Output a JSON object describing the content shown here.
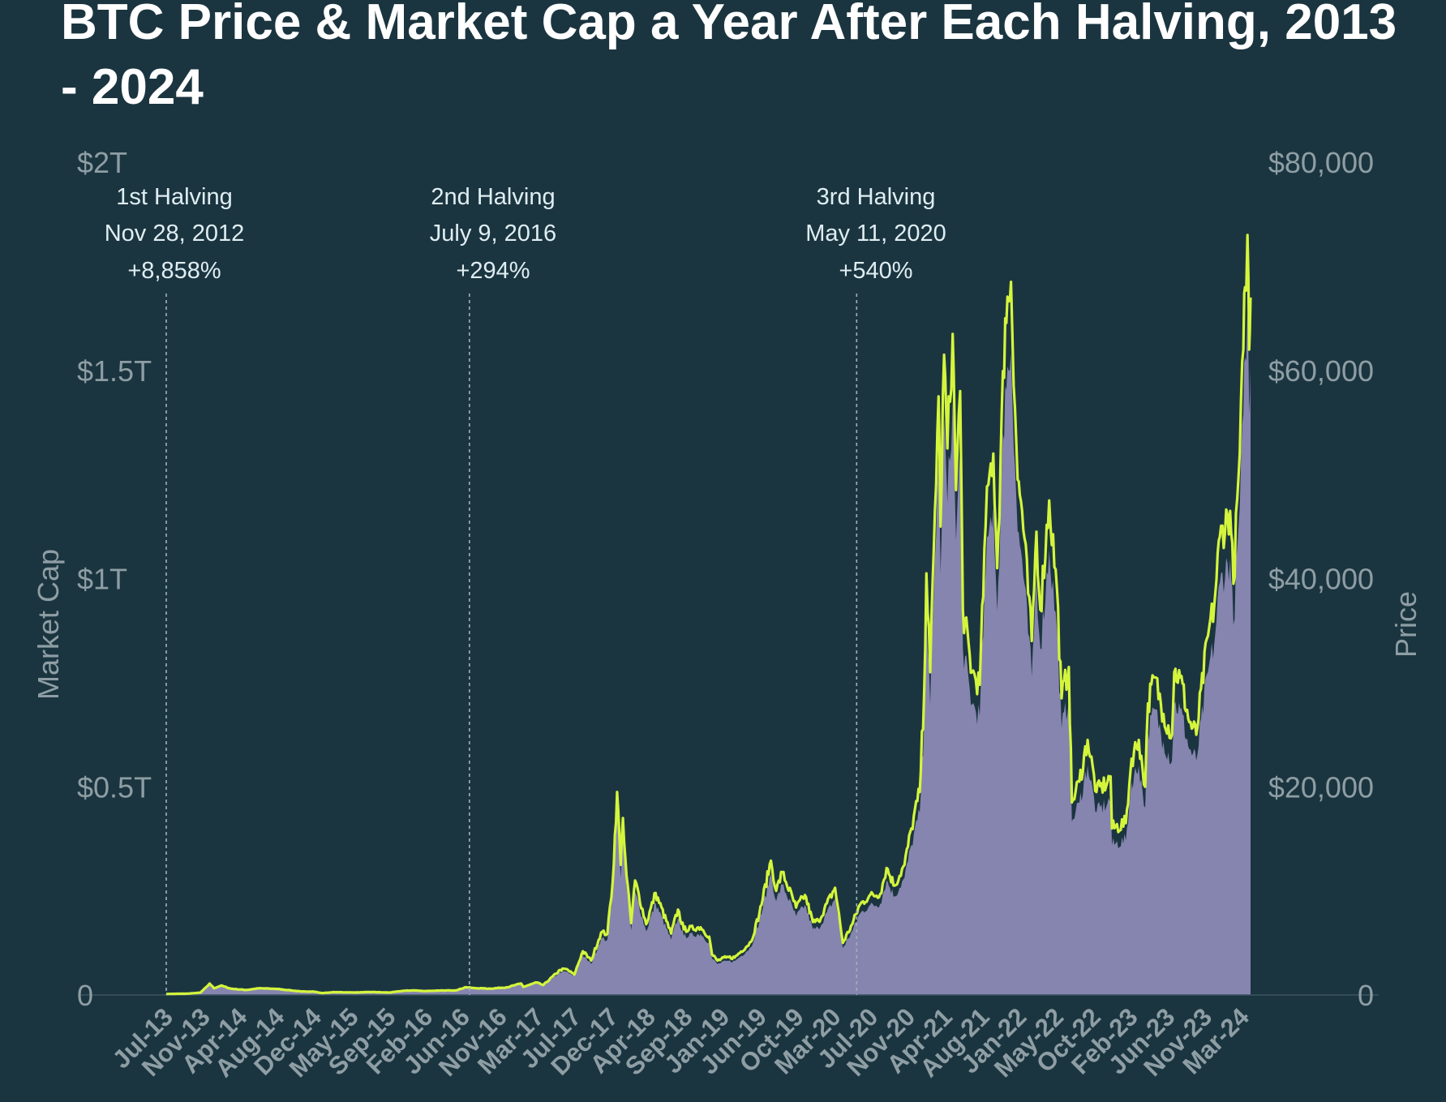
{
  "title": "BTC Price & Market Cap a Year After Each Halving, 2013 - 2024",
  "chart_data": {
    "type": "area",
    "title": "BTC Price & Market Cap a Year After Each Halving, 2013 - 2024",
    "ylabel_left": "Market Cap",
    "ylabel_right": "Price",
    "left_axis": {
      "ticks": [
        0,
        0.5,
        1,
        1.5,
        2
      ],
      "tick_labels": [
        "0",
        "$0.5T",
        "$1T",
        "$1.5T",
        "$2T"
      ],
      "unit": "trillion USD",
      "ylim": [
        0,
        2
      ]
    },
    "right_axis": {
      "ticks": [
        0,
        20000,
        40000,
        60000,
        80000
      ],
      "tick_labels": [
        "0",
        "$20,000",
        "$40,000",
        "$60,000",
        "$80,000"
      ],
      "ylim": [
        0,
        80000
      ]
    },
    "x_tick_labels": [
      "Jul-13",
      "Nov-13",
      "Apr-14",
      "Aug-14",
      "Dec-14",
      "May-15",
      "Sep-15",
      "Feb-16",
      "Jun-16",
      "Nov-16",
      "Mar-17",
      "Jul-17",
      "Dec-17",
      "Apr-18",
      "Sep-18",
      "Jan-19",
      "Jun-19",
      "Oct-19",
      "Mar-20",
      "Jul-20",
      "Nov-20",
      "Apr-21",
      "Aug-21",
      "Jan-22",
      "May-22",
      "Oct-22",
      "Feb-23",
      "Jun-23",
      "Nov-23",
      "Mar-24"
    ],
    "x_range": [
      "2013-07",
      "2024-03"
    ],
    "annotations": [
      {
        "label": "1st Halving",
        "date": "Nov 28, 2012",
        "change": "+8,858%",
        "x": "2013-07"
      },
      {
        "label": "2nd Halving",
        "date": "July 9, 2016",
        "change": "+294%",
        "x": "2016-07"
      },
      {
        "label": "3rd Halving",
        "date": "May 11, 2020",
        "change": "+540%",
        "x": "2020-05"
      }
    ],
    "series": [
      {
        "name": "Price",
        "axis": "right",
        "style": "line",
        "color": "#d4f53c",
        "points": [
          [
            "2013-07-01",
            95
          ],
          [
            "2013-09-15",
            125
          ],
          [
            "2013-11-01",
            220
          ],
          [
            "2013-11-25",
            800
          ],
          [
            "2013-12-05",
            1100
          ],
          [
            "2013-12-20",
            650
          ],
          [
            "2014-01-15",
            900
          ],
          [
            "2014-02-20",
            600
          ],
          [
            "2014-04-15",
            480
          ],
          [
            "2014-06-01",
            640
          ],
          [
            "2014-08-01",
            590
          ],
          [
            "2014-09-15",
            470
          ],
          [
            "2014-11-01",
            330
          ],
          [
            "2014-12-15",
            330
          ],
          [
            "2015-01-14",
            180
          ],
          [
            "2015-03-01",
            270
          ],
          [
            "2015-05-15",
            240
          ],
          [
            "2015-07-15",
            285
          ],
          [
            "2015-09-15",
            230
          ],
          [
            "2015-11-05",
            400
          ],
          [
            "2015-12-15",
            440
          ],
          [
            "2016-01-15",
            380
          ],
          [
            "2016-03-15",
            415
          ],
          [
            "2016-05-15",
            450
          ],
          [
            "2016-06-18",
            750
          ],
          [
            "2016-07-15",
            660
          ],
          [
            "2016-09-15",
            610
          ],
          [
            "2016-11-15",
            740
          ],
          [
            "2017-01-04",
            1100
          ],
          [
            "2017-01-12",
            780
          ],
          [
            "2017-03-01",
            1200
          ],
          [
            "2017-03-25",
            950
          ],
          [
            "2017-05-25",
            2400
          ],
          [
            "2017-06-15",
            2500
          ],
          [
            "2017-07-15",
            1950
          ],
          [
            "2017-08-15",
            4200
          ],
          [
            "2017-09-14",
            3300
          ],
          [
            "2017-10-20",
            6000
          ],
          [
            "2017-11-12",
            5900
          ],
          [
            "2017-12-01",
            10900
          ],
          [
            "2017-12-17",
            19500
          ],
          [
            "2017-12-30",
            12500
          ],
          [
            "2018-01-07",
            17000
          ],
          [
            "2018-01-20",
            11500
          ],
          [
            "2018-02-06",
            6900
          ],
          [
            "2018-02-20",
            11000
          ],
          [
            "2018-04-01",
            6800
          ],
          [
            "2018-05-05",
            9800
          ],
          [
            "2018-06-30",
            5900
          ],
          [
            "2018-07-25",
            8200
          ],
          [
            "2018-08-15",
            6300
          ],
          [
            "2018-10-15",
            6500
          ],
          [
            "2018-11-15",
            5600
          ],
          [
            "2018-11-25",
            3900
          ],
          [
            "2018-12-15",
            3300
          ],
          [
            "2019-01-15",
            3600
          ],
          [
            "2019-02-15",
            3600
          ],
          [
            "2019-04-15",
            5100
          ],
          [
            "2019-05-15",
            7800
          ],
          [
            "2019-06-26",
            12900
          ],
          [
            "2019-07-15",
            10000
          ],
          [
            "2019-08-06",
            11800
          ],
          [
            "2019-09-25",
            8400
          ],
          [
            "2019-10-27",
            9600
          ],
          [
            "2019-11-25",
            7000
          ],
          [
            "2019-12-15",
            7100
          ],
          [
            "2020-02-13",
            10300
          ],
          [
            "2020-03-12",
            5000
          ],
          [
            "2020-04-15",
            6800
          ],
          [
            "2020-05-11",
            8600
          ],
          [
            "2020-06-15",
            9500
          ],
          [
            "2020-07-25",
            9700
          ],
          [
            "2020-08-17",
            12200
          ],
          [
            "2020-09-15",
            10500
          ],
          [
            "2020-10-21",
            12500
          ],
          [
            "2020-11-15",
            16000
          ],
          [
            "2020-12-15",
            19500
          ],
          [
            "2020-12-31",
            29000
          ],
          [
            "2021-01-08",
            40500
          ],
          [
            "2021-01-22",
            31000
          ],
          [
            "2021-02-08",
            46500
          ],
          [
            "2021-02-21",
            57500
          ],
          [
            "2021-02-28",
            45000
          ],
          [
            "2021-03-13",
            61500
          ],
          [
            "2021-03-25",
            52500
          ],
          [
            "2021-04-13",
            63500
          ],
          [
            "2021-04-25",
            48500
          ],
          [
            "2021-05-10",
            58000
          ],
          [
            "2021-05-20",
            37000
          ],
          [
            "2021-06-22",
            31000
          ],
          [
            "2021-07-20",
            29800
          ],
          [
            "2021-08-10",
            45000
          ],
          [
            "2021-08-20",
            49000
          ],
          [
            "2021-09-07",
            52000
          ],
          [
            "2021-09-21",
            41000
          ],
          [
            "2021-10-20",
            65000
          ],
          [
            "2021-11-10",
            68500
          ],
          [
            "2021-12-04",
            49500
          ],
          [
            "2021-12-20",
            46500
          ],
          [
            "2022-01-24",
            34000
          ],
          [
            "2022-02-10",
            44500
          ],
          [
            "2022-02-24",
            37000
          ],
          [
            "2022-03-28",
            47500
          ],
          [
            "2022-04-25",
            39000
          ],
          [
            "2022-05-12",
            28500
          ],
          [
            "2022-06-07",
            31500
          ],
          [
            "2022-06-18",
            18500
          ],
          [
            "2022-07-15",
            20500
          ],
          [
            "2022-08-14",
            24500
          ],
          [
            "2022-09-15",
            19500
          ],
          [
            "2022-10-25",
            20500
          ],
          [
            "2022-11-05",
            21000
          ],
          [
            "2022-11-10",
            16000
          ],
          [
            "2022-12-30",
            16500
          ],
          [
            "2023-01-20",
            22700
          ],
          [
            "2023-02-15",
            24500
          ],
          [
            "2023-03-10",
            20000
          ],
          [
            "2023-03-20",
            28000
          ],
          [
            "2023-04-14",
            30500
          ],
          [
            "2023-05-15",
            27000
          ],
          [
            "2023-06-15",
            25000
          ],
          [
            "2023-06-23",
            31000
          ],
          [
            "2023-07-15",
            30500
          ],
          [
            "2023-08-17",
            26200
          ],
          [
            "2023-09-11",
            25000
          ],
          [
            "2023-10-23",
            34500
          ],
          [
            "2023-11-15",
            37500
          ],
          [
            "2023-12-05",
            44000
          ],
          [
            "2024-01-11",
            46500
          ],
          [
            "2024-01-23",
            39500
          ],
          [
            "2024-02-15",
            52000
          ],
          [
            "2024-02-28",
            62000
          ],
          [
            "2024-03-05",
            68000
          ],
          [
            "2024-03-14",
            73000
          ],
          [
            "2024-03-20",
            62000
          ],
          [
            "2024-03-25",
            67000
          ]
        ]
      },
      {
        "name": "Market Cap",
        "axis": "left",
        "style": "area",
        "color": "#8a88b3",
        "scale_vs_price_axis": 0.9
      }
    ],
    "grid": false,
    "legend": "none"
  }
}
